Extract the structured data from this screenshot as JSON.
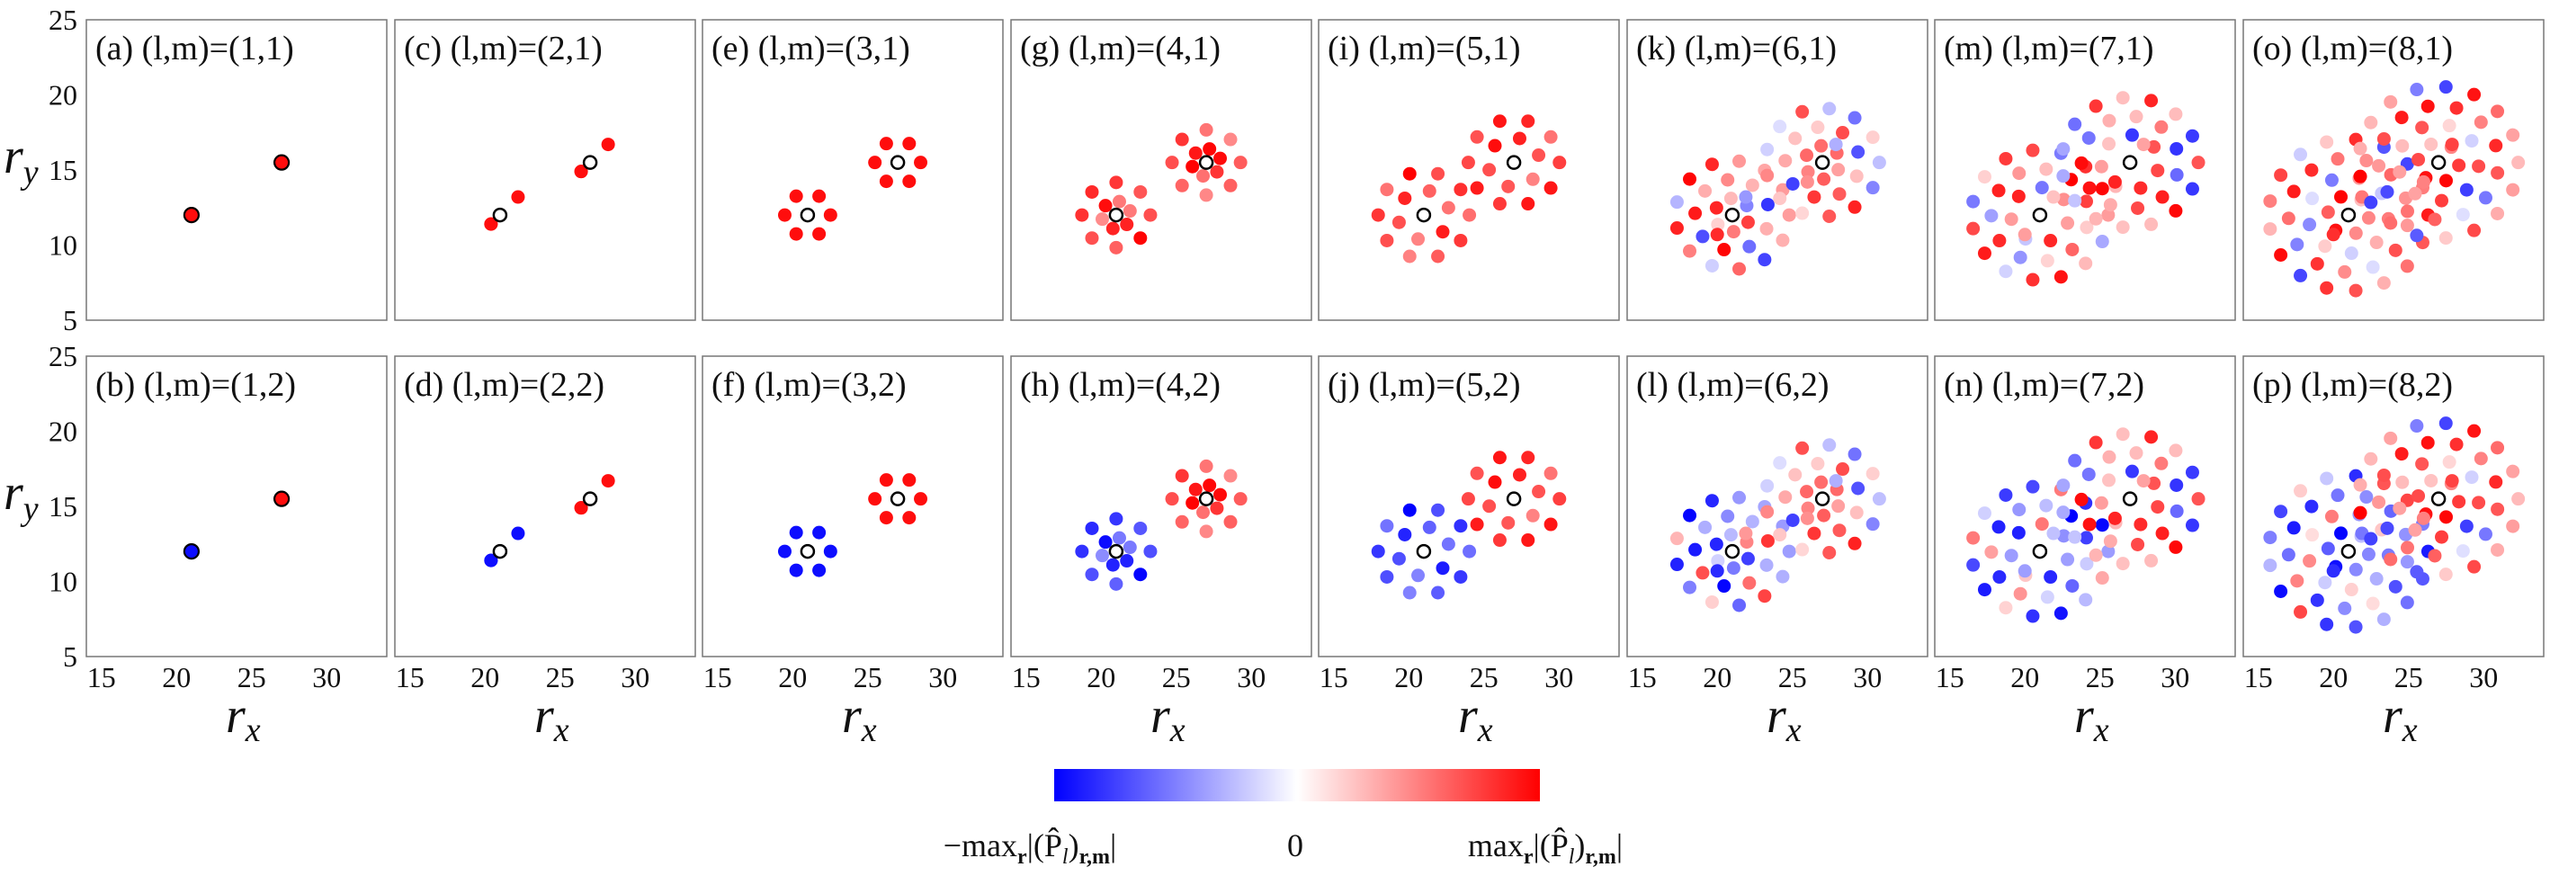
{
  "chart_data": {
    "type": "scatter",
    "description_note": "Grid of 16 lattice-site plots; colors encode signed normalized amplitude (-1 blue .. 0 white .. +1 red).",
    "x_axis": {
      "label": "r",
      "label_sub": "x",
      "ticks": [
        15,
        20,
        25,
        30
      ],
      "range": [
        14,
        34
      ]
    },
    "y_axis": {
      "label": "r",
      "label_sub": "y",
      "ticks": [
        5,
        10,
        15,
        20,
        25
      ],
      "range": [
        5,
        25
      ]
    },
    "centers": [
      [
        21,
        12
      ],
      [
        27,
        15.5
      ]
    ],
    "colorbar": {
      "colors": [
        "#0000ff",
        "#ffffff",
        "#ff0000"
      ],
      "label_left": "−max",
      "label_left_sub": "r",
      "label_mid": "0",
      "label_right": "max",
      "label_right_sub": "r",
      "label_expr": "|(P̂",
      "label_expr_sub": "l",
      "label_expr_end": ")",
      "label_expr_sub2": "r,m",
      "label_expr_close": "|"
    },
    "panels": [
      {
        "id": "a",
        "title": "(a) (l,m)=(1,1)",
        "l": 1,
        "sign": [
          1,
          1
        ]
      },
      {
        "id": "c",
        "title": "(c) (l,m)=(2,1)",
        "l": 2,
        "sign": [
          1,
          1
        ]
      },
      {
        "id": "e",
        "title": "(e) (l,m)=(3,1)",
        "l": 3,
        "sign": [
          1,
          1
        ]
      },
      {
        "id": "g",
        "title": "(g) (l,m)=(4,1)",
        "l": 4,
        "sign": [
          1,
          1
        ]
      },
      {
        "id": "i",
        "title": "(i) (l,m)=(5,1)",
        "l": 5,
        "sign": [
          1,
          1
        ]
      },
      {
        "id": "k",
        "title": "(k) (l,m)=(6,1)",
        "l": 6,
        "sign": [
          1,
          1
        ]
      },
      {
        "id": "m",
        "title": "(m) (l,m)=(7,1)",
        "l": 7,
        "sign": [
          1,
          1
        ]
      },
      {
        "id": "o",
        "title": "(o) (l,m)=(8,1)",
        "l": 8,
        "sign": [
          1,
          1
        ]
      },
      {
        "id": "b",
        "title": "(b) (l,m)=(1,2)",
        "l": 1,
        "sign": [
          -1,
          1
        ]
      },
      {
        "id": "d",
        "title": "(d) (l,m)=(2,2)",
        "l": 2,
        "sign": [
          -1,
          1
        ]
      },
      {
        "id": "f",
        "title": "(f) (l,m)=(3,2)",
        "l": 3,
        "sign": [
          -1,
          1
        ]
      },
      {
        "id": "h",
        "title": "(h) (l,m)=(4,2)",
        "l": 4,
        "sign": [
          -1,
          1
        ]
      },
      {
        "id": "j",
        "title": "(j) (l,m)=(5,2)",
        "l": 5,
        "sign": [
          -1,
          1
        ]
      },
      {
        "id": "l",
        "title": "(l) (l,m)=(6,2)",
        "l": 6,
        "sign": [
          -1,
          1
        ]
      },
      {
        "id": "n",
        "title": "(n) (l,m)=(7,2)",
        "l": 7,
        "sign": [
          -1,
          1
        ]
      },
      {
        "id": "p",
        "title": "(p) (l,m)=(8,2)",
        "l": 8,
        "sign": [
          -1,
          1
        ]
      }
    ]
  }
}
